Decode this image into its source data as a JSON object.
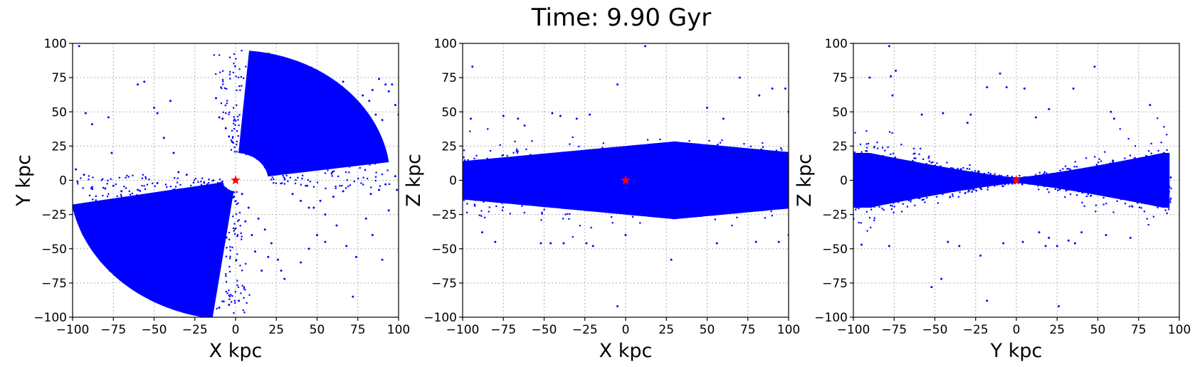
{
  "figure": {
    "title": "Time: 9.90 Gyr"
  },
  "chart_data": [
    {
      "type": "scatter",
      "panel": "X-Y projection",
      "xlabel": "X kpc",
      "ylabel": "Y kpc",
      "xlim": [
        -100,
        100
      ],
      "ylim": [
        -100,
        100
      ],
      "xticks": [
        -100,
        -75,
        -50,
        -25,
        0,
        25,
        50,
        75,
        100
      ],
      "yticks": [
        -100,
        -75,
        -50,
        -25,
        0,
        25,
        50,
        75,
        100
      ],
      "xtick_labels": [
        "−100",
        "−75",
        "−50",
        "−25",
        "0",
        "25",
        "50",
        "75",
        "100"
      ],
      "ytick_labels": [
        "−100",
        "−75",
        "−50",
        "−25",
        "0",
        "25",
        "50",
        "75",
        "100"
      ],
      "grid": true,
      "point_color": "#0000ff",
      "marker": {
        "x": 0,
        "y": 0,
        "symbol": "star",
        "color": "#ff0000"
      },
      "points": [
        [
          -96,
          98
        ],
        [
          -92,
          49
        ],
        [
          -88,
          41
        ],
        [
          -78,
          46
        ],
        [
          -76,
          20
        ],
        [
          -60,
          70
        ],
        [
          -56,
          72
        ],
        [
          -50,
          53
        ],
        [
          -48,
          49
        ],
        [
          -44,
          31
        ],
        [
          -40,
          58
        ],
        [
          -38,
          20
        ],
        [
          -8,
          45
        ],
        [
          -4,
          32
        ],
        [
          4,
          -10
        ],
        [
          35,
          -10
        ],
        [
          40,
          -15
        ],
        [
          45,
          -20
        ],
        [
          48,
          -20
        ],
        [
          52,
          -15
        ],
        [
          55,
          -25
        ],
        [
          60,
          -12
        ],
        [
          62,
          -33
        ],
        [
          66,
          -8
        ],
        [
          72,
          -85
        ],
        [
          80,
          -28
        ],
        [
          83,
          -10
        ],
        [
          88,
          -7
        ],
        [
          90,
          -58
        ],
        [
          92,
          -3
        ],
        [
          94,
          -22
        ],
        [
          99,
          -7
        ],
        [
          98,
          3
        ],
        [
          -98,
          8
        ],
        [
          -97,
          -1
        ],
        [
          -93,
          4
        ],
        [
          -88,
          -5
        ],
        [
          -80,
          -6
        ],
        [
          -70,
          -8
        ],
        [
          -60,
          -7
        ],
        [
          -75,
          -4
        ],
        [
          -48,
          -2
        ],
        [
          -35,
          6
        ],
        [
          -30,
          4
        ],
        [
          -26,
          -8
        ],
        [
          -12,
          60
        ],
        [
          -10,
          46
        ],
        [
          -6,
          38
        ],
        [
          -2,
          28
        ],
        [
          14,
          -28
        ],
        [
          18,
          -36
        ],
        [
          22,
          -46
        ],
        [
          26,
          -58
        ],
        [
          28,
          -66
        ],
        [
          30,
          -72
        ],
        [
          20,
          -56
        ],
        [
          8,
          -20
        ],
        [
          6,
          -30
        ],
        [
          10,
          -40
        ],
        [
          12,
          -52
        ],
        [
          16,
          -66
        ],
        [
          -20,
          -99
        ],
        [
          -16,
          -96
        ],
        [
          -10,
          -93
        ],
        [
          -4,
          -91
        ],
        [
          2,
          -88
        ],
        [
          54,
          60
        ],
        [
          58,
          66
        ],
        [
          62,
          70
        ],
        [
          66,
          72
        ],
        [
          70,
          56
        ],
        [
          74,
          50
        ],
        [
          78,
          62
        ],
        [
          82,
          58
        ],
        [
          86,
          48
        ],
        [
          90,
          44
        ],
        [
          94,
          65
        ],
        [
          96,
          70
        ],
        [
          98,
          55
        ],
        [
          100,
          48
        ],
        [
          84,
          66
        ],
        [
          88,
          74
        ],
        [
          92,
          70
        ],
        [
          60,
          36
        ],
        [
          64,
          28
        ],
        [
          70,
          34
        ],
        [
          76,
          30
        ],
        [
          80,
          40
        ],
        [
          50,
          -40
        ],
        [
          45,
          -50
        ],
        [
          40,
          -60
        ],
        [
          55,
          -45
        ],
        [
          68,
          -48
        ],
        [
          74,
          -56
        ],
        [
          84,
          -40
        ]
      ],
      "dense_regions": [
        {
          "shape": "disk_sector",
          "from_deg": 8,
          "to_deg": 85,
          "r_min": 20,
          "r_max": 95
        },
        {
          "shape": "disk_sector",
          "from_deg": 190,
          "to_deg": 262,
          "r_min": 8,
          "r_max": 102
        }
      ]
    },
    {
      "type": "scatter",
      "panel": "X-Z projection",
      "xlabel": "X kpc",
      "ylabel": "Z kpc",
      "xlim": [
        -100,
        100
      ],
      "ylim": [
        -100,
        100
      ],
      "xticks": [
        -100,
        -75,
        -50,
        -25,
        0,
        25,
        50,
        75,
        100
      ],
      "yticks": [
        -100,
        -75,
        -50,
        -25,
        0,
        25,
        50,
        75,
        100
      ],
      "xtick_labels": [
        "−100",
        "−75",
        "−50",
        "−25",
        "0",
        "25",
        "50",
        "75",
        "100"
      ],
      "ytick_labels": [
        "−100",
        "−75",
        "−50",
        "−25",
        "0",
        "25",
        "50",
        "75",
        "100"
      ],
      "grid": true,
      "point_color": "#0000ff",
      "marker": {
        "x": 0,
        "y": 0,
        "symbol": "star",
        "color": "#ff0000"
      },
      "points": [
        [
          -94,
          83
        ],
        [
          -75,
          47
        ],
        [
          -66,
          45
        ],
        [
          -62,
          40
        ],
        [
          -45,
          49
        ],
        [
          -40,
          47
        ],
        [
          -30,
          45
        ],
        [
          -22,
          48
        ],
        [
          -5,
          70
        ],
        [
          12,
          98
        ],
        [
          50,
          53
        ],
        [
          60,
          45
        ],
        [
          70,
          75
        ],
        [
          82,
          62
        ],
        [
          90,
          67
        ],
        [
          98,
          67
        ],
        [
          -95,
          45
        ],
        [
          100,
          50
        ],
        [
          -88,
          -38
        ],
        [
          -80,
          -45
        ],
        [
          -52,
          -46
        ],
        [
          -46,
          -46
        ],
        [
          -38,
          -46
        ],
        [
          -24,
          -46
        ],
        [
          -20,
          -48
        ],
        [
          -5,
          -92
        ],
        [
          0,
          -40
        ],
        [
          28,
          -58
        ],
        [
          56,
          -46
        ],
        [
          80,
          -45
        ],
        [
          94,
          -45
        ],
        [
          100,
          -40
        ]
      ],
      "dense_regions": [
        {
          "shape": "band",
          "x_range": [
            -100,
            100
          ],
          "half_width_center": 8,
          "half_width_edge": 24
        }
      ]
    },
    {
      "type": "scatter",
      "panel": "Y-Z projection",
      "xlabel": "Y kpc",
      "ylabel": "Z kpc",
      "xlim": [
        -100,
        100
      ],
      "ylim": [
        -100,
        100
      ],
      "xticks": [
        -100,
        -75,
        -50,
        -25,
        0,
        25,
        50,
        75,
        100
      ],
      "yticks": [
        -100,
        -75,
        -50,
        -25,
        0,
        25,
        50,
        75,
        100
      ],
      "xtick_labels": [
        "−100",
        "−75",
        "−50",
        "−25",
        "0",
        "25",
        "50",
        "75",
        "100"
      ],
      "ytick_labels": [
        "−100",
        "−75",
        "−50",
        "−25",
        "0",
        "25",
        "50",
        "75",
        "100"
      ],
      "grid": true,
      "point_color": "#0000ff",
      "marker": {
        "x": 0,
        "y": 0,
        "symbol": "star",
        "color": "#ff0000"
      },
      "points": [
        [
          -78,
          98
        ],
        [
          -77,
          76
        ],
        [
          -74,
          80
        ],
        [
          -76,
          62
        ],
        [
          -58,
          48
        ],
        [
          -45,
          49
        ],
        [
          -30,
          42
        ],
        [
          -28,
          48
        ],
        [
          -18,
          68
        ],
        [
          -10,
          78
        ],
        [
          -6,
          68
        ],
        [
          5,
          67
        ],
        [
          12,
          46
        ],
        [
          20,
          52
        ],
        [
          35,
          67
        ],
        [
          48,
          83
        ],
        [
          58,
          50
        ],
        [
          60,
          45
        ],
        [
          82,
          55
        ],
        [
          -90,
          75
        ],
        [
          -52,
          -78
        ],
        [
          -46,
          -72
        ],
        [
          -42,
          -45
        ],
        [
          -35,
          -48
        ],
        [
          -22,
          -55
        ],
        [
          -18,
          -88
        ],
        [
          -8,
          -46
        ],
        [
          4,
          -45
        ],
        [
          14,
          -38
        ],
        [
          18,
          -48
        ],
        [
          20,
          -42
        ],
        [
          25,
          -48
        ],
        [
          26,
          -92
        ],
        [
          32,
          -44
        ],
        [
          36,
          -46
        ],
        [
          40,
          -38
        ],
        [
          55,
          -40
        ],
        [
          70,
          -42
        ],
        [
          -78,
          -48
        ],
        [
          -95,
          -47
        ]
      ],
      "dense_regions": [
        {
          "shape": "bowtie",
          "x_range": [
            -100,
            95
          ],
          "half_width_center": 2,
          "half_width_edge": 26
        }
      ]
    }
  ]
}
